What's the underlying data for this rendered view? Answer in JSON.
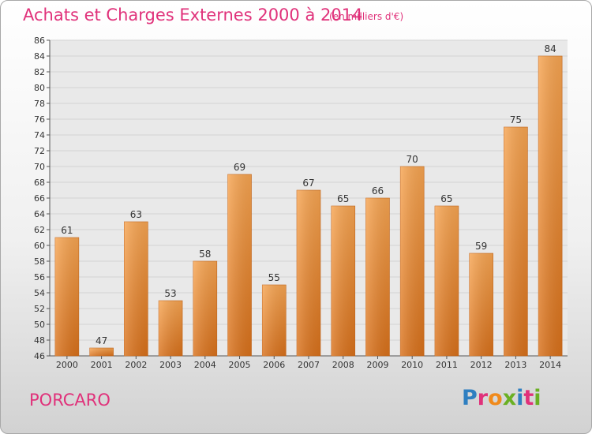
{
  "header": {
    "title": "Achats et Charges Externes 2000 à 2014",
    "subtitle": "(en milliers d'€)"
  },
  "footer": {
    "commune": "PORCARO",
    "logo_text": "Proxiti",
    "logo_colors": [
      "#2f7fc1",
      "#e0317a",
      "#f08a1c",
      "#6ab023",
      "#2f7fc1",
      "#e0317a",
      "#6ab023"
    ]
  },
  "chart_data": {
    "type": "bar",
    "title": "Achats et Charges Externes 2000 à 2014",
    "subtitle": "(en milliers d'€)",
    "categories": [
      "2000",
      "2001",
      "2002",
      "2003",
      "2004",
      "2005",
      "2006",
      "2007",
      "2008",
      "2009",
      "2010",
      "2011",
      "2012",
      "2013",
      "2014"
    ],
    "values": [
      61,
      47,
      63,
      53,
      58,
      69,
      55,
      67,
      65,
      66,
      70,
      65,
      59,
      75,
      84
    ],
    "ylim": [
      46,
      86
    ],
    "ytick_step": 2,
    "grid": true,
    "bar_color": "#f0953e",
    "xlabel": "",
    "ylabel": ""
  }
}
